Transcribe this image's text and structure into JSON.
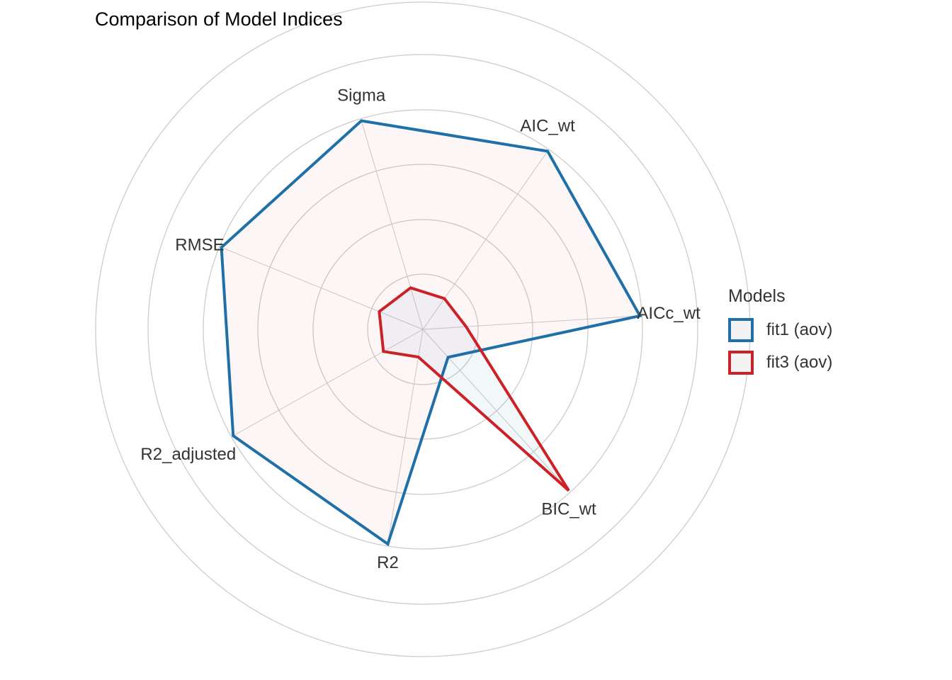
{
  "chart_data": {
    "type": "radar",
    "title": "Comparison of Model Indices",
    "axes": [
      "AIC_wt",
      "AICc_wt",
      "BIC_wt",
      "R2",
      "R2_adjusted",
      "RMSE",
      "Sigma"
    ],
    "series": [
      {
        "name": "fit1 (aov)",
        "color": "#1f6fa8",
        "values": [
          1.0,
          1.0,
          0.06,
          1.0,
          1.0,
          1.0,
          1.0
        ]
      },
      {
        "name": "fit3 (aov)",
        "color": "#cc2127",
        "values": [
          0.06,
          0.09,
          1.0,
          0.01,
          0.1,
          0.11,
          0.09
        ]
      }
    ],
    "rlim": [
      0,
      1
    ],
    "grid": true,
    "legend_position": "right"
  },
  "legend": {
    "title": "Models",
    "items": [
      {
        "label": "fit1 (aov)",
        "color": "#1f6fa8"
      },
      {
        "label": "fit3 (aov)",
        "color": "#cc2127"
      }
    ]
  }
}
